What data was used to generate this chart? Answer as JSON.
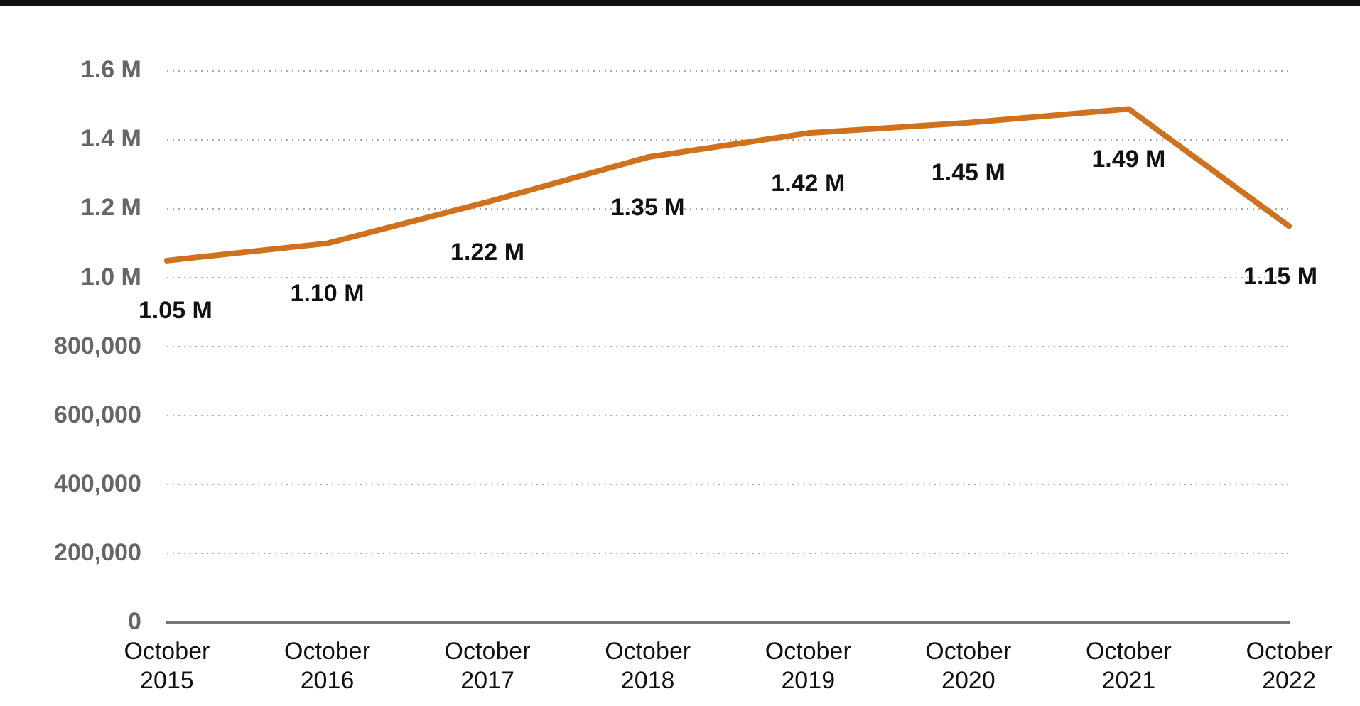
{
  "chart_data": {
    "type": "line",
    "categories": [
      "October 2015",
      "October 2016",
      "October 2017",
      "October 2018",
      "October 2019",
      "October 2020",
      "October 2021",
      "October 2022"
    ],
    "series": [
      {
        "color": "#d0711d",
        "values": [
          1050000,
          1100000,
          1220000,
          1350000,
          1420000,
          1450000,
          1490000,
          1150000
        ],
        "value_labels": [
          "1.05 M",
          "1.10 M",
          "1.22 M",
          "1.35 M",
          "1.42 M",
          "1.45 M",
          "1.49 M",
          "1.15 M"
        ]
      }
    ],
    "ylim": [
      0,
      1600000
    ],
    "yticks": [
      0,
      {
        "value": 200000,
        "label": "200,000"
      },
      {
        "value": 400000,
        "label": "400,000"
      },
      {
        "value": 600000,
        "label": "600,000"
      },
      {
        "value": 800000,
        "label": "800,000"
      },
      {
        "value": 1000000,
        "label": "1.0 M"
      },
      {
        "value": 1200000,
        "label": "1.2 M"
      },
      {
        "value": 1400000,
        "label": "1.4 M"
      },
      {
        "value": 1600000,
        "label": "1.6 M"
      }
    ],
    "grid": "y",
    "legend": false,
    "marker": "none",
    "line_style": "solid"
  }
}
